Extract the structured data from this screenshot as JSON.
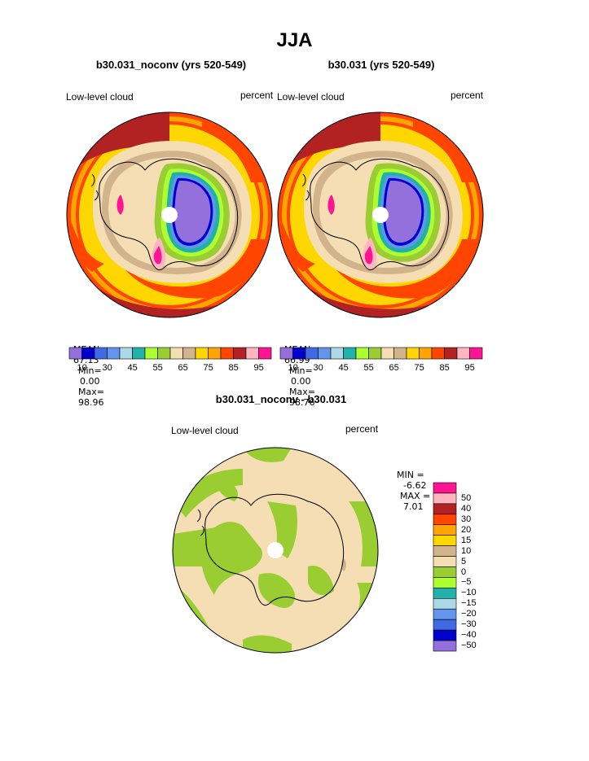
{
  "title": "JJA",
  "chart_data": [
    {
      "type": "heatmap",
      "title": "b30.031_noconv (yrs 520-549)",
      "left_label": "Low-level cloud",
      "right_label": "percent",
      "stats": {
        "mean_label": "MEAN=",
        "mean": "67.13",
        "min_label": "Min=",
        "min": "0.00",
        "max_label": "Max=",
        "max": "98.96"
      },
      "levels": [
        "10",
        "30",
        "45",
        "55",
        "65",
        "75",
        "85",
        "95"
      ]
    },
    {
      "type": "heatmap",
      "title": "b30.031 (yrs 520-549)",
      "left_label": "Low-level cloud",
      "right_label": "percent",
      "stats": {
        "mean_label": "MEAN=",
        "mean": "66.99",
        "min_label": "Min=",
        "min": "0.00",
        "max_label": "Max=",
        "max": "98.76"
      },
      "levels": [
        "10",
        "30",
        "45",
        "55",
        "65",
        "75",
        "85",
        "95"
      ]
    },
    {
      "type": "heatmap",
      "title": "b30.031_noconv - b30.031",
      "left_label": "Low-level cloud",
      "right_label": "percent",
      "stats": {
        "min_label": "MIN =",
        "min": "-6.62",
        "max_label": "MAX =",
        "max": "7.01"
      },
      "levels": [
        "50",
        "40",
        "30",
        "20",
        "15",
        "10",
        "5",
        "0",
        "−5",
        "−10",
        "−15",
        "−20",
        "−30",
        "−40",
        "−50"
      ]
    }
  ],
  "colors": {
    "scale": [
      "#9370DB",
      "#0000CD",
      "#4169E1",
      "#6495ED",
      "#ADD8E6",
      "#20B2AA",
      "#ADFF2F",
      "#9ACD32",
      "#F5DEB3",
      "#D2B48C",
      "#FFD700",
      "#FFA500",
      "#FF4500",
      "#B22222",
      "#FFB6C1",
      "#FF1493"
    ],
    "diff_scale": [
      "#FF1493",
      "#FFB6C1",
      "#B22222",
      "#FF4500",
      "#FFA500",
      "#FFD700",
      "#D2B48C",
      "#F5DEB3",
      "#9ACD32",
      "#ADFF2F",
      "#20B2AA",
      "#ADD8E6",
      "#6495ED",
      "#4169E1",
      "#0000CD",
      "#9370DB"
    ]
  }
}
